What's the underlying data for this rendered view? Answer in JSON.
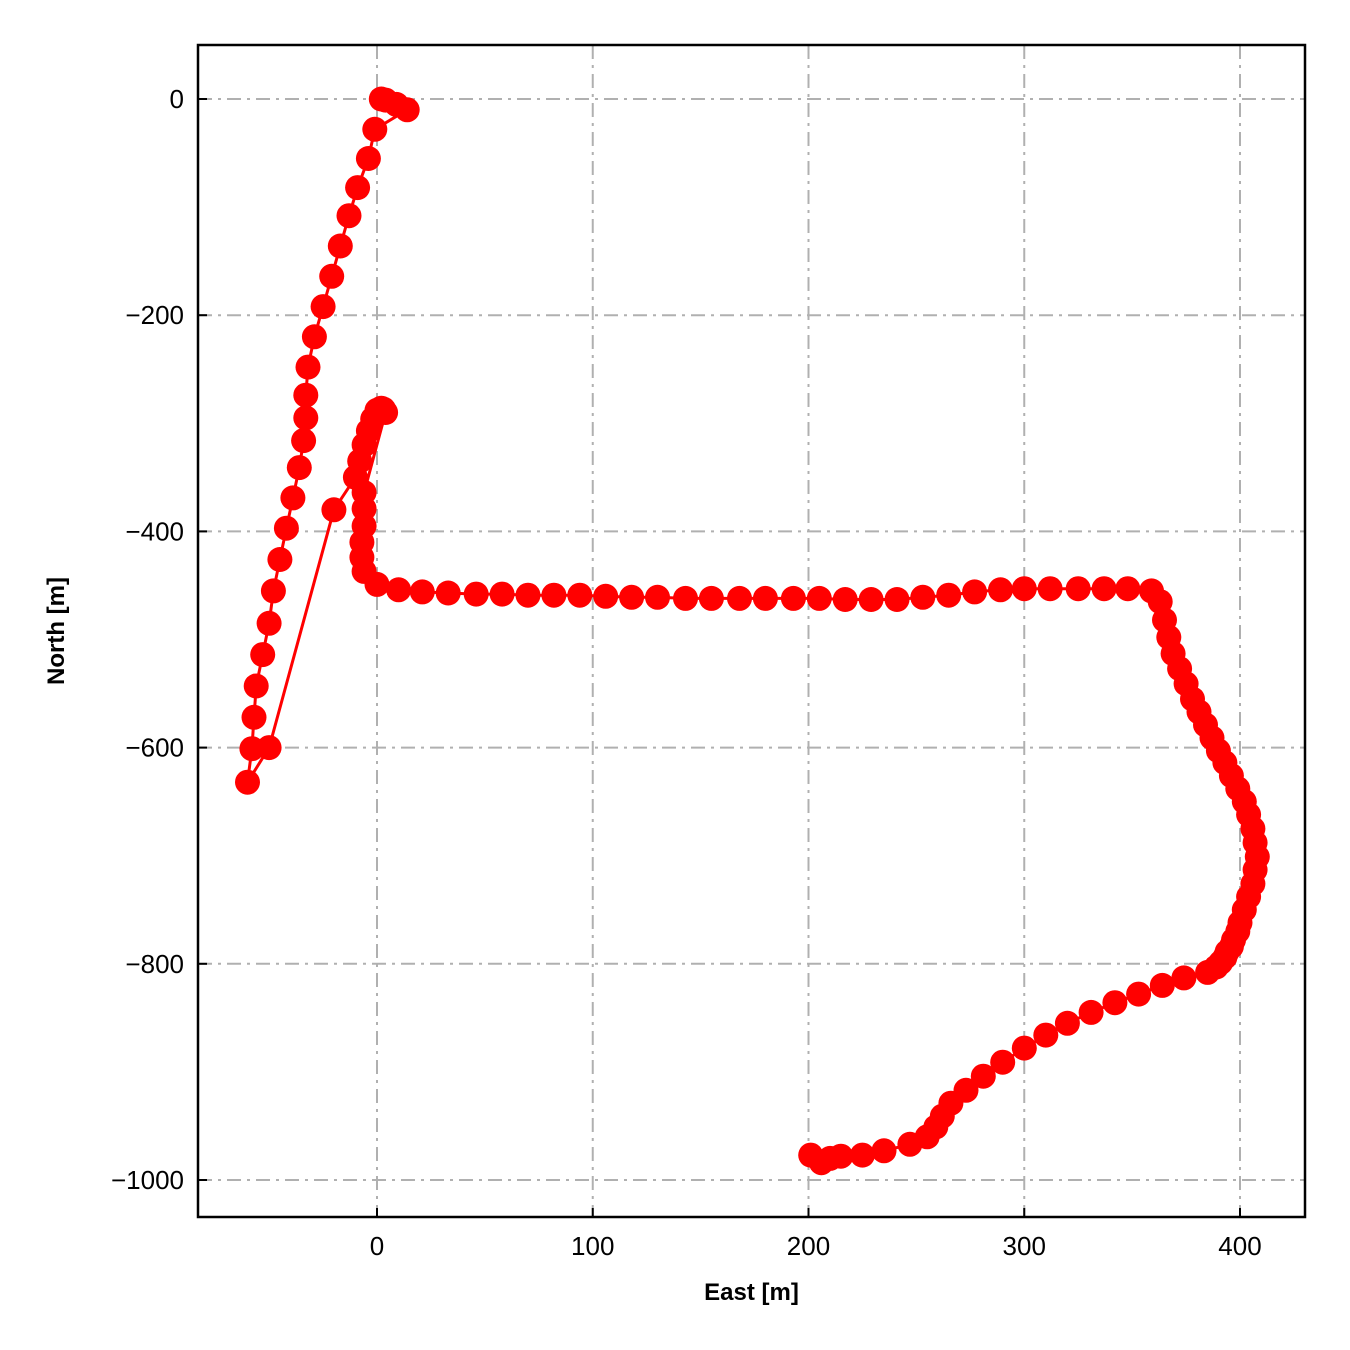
{
  "chart_data": {
    "type": "line",
    "title": "",
    "xlabel": "East [m]",
    "ylabel": "North [m]",
    "xlim": [
      -83,
      430
    ],
    "ylim": [
      -1035,
      50
    ],
    "xticks": [
      0,
      100,
      200,
      300,
      400
    ],
    "yticks": [
      0,
      -200,
      -400,
      -600,
      -800,
      -1000
    ],
    "xtick_labels": [
      "0",
      "100",
      "200",
      "300",
      "400"
    ],
    "ytick_labels": [
      "0",
      "−200",
      "−400",
      "−600",
      "−800",
      "−1000"
    ],
    "grid": true,
    "grid_style": "dash-dot",
    "legend": null,
    "series": [
      {
        "color": "#ff0000",
        "marker": "circle",
        "x": [
          2,
          4,
          9,
          14,
          -1,
          -4,
          -9,
          -13,
          -17,
          -21,
          -25,
          -29,
          -32,
          -33,
          -33,
          -34,
          -36,
          -39,
          -42,
          -45,
          -48,
          -50,
          -53,
          -56,
          -57,
          -58,
          -60,
          -50,
          -20,
          -10,
          -8,
          -6,
          -4,
          -2,
          0,
          2,
          3,
          4,
          -6,
          -6,
          -6,
          -7,
          -7,
          -6,
          0,
          10,
          21,
          33,
          46,
          58,
          70,
          82,
          94,
          106,
          118,
          130,
          143,
          155,
          168,
          180,
          193,
          205,
          217,
          229,
          241,
          253,
          265,
          277,
          289,
          300,
          312,
          325,
          337,
          348,
          359,
          363,
          365,
          367,
          369,
          372,
          375,
          378,
          381,
          384,
          387,
          390,
          393,
          396,
          399,
          402,
          404,
          406,
          407,
          408,
          407,
          406,
          404,
          402,
          400,
          399,
          397,
          396,
          394,
          393,
          391,
          389,
          385,
          374,
          364,
          353,
          342,
          331,
          320,
          310,
          300,
          290,
          281,
          273,
          266,
          262,
          259,
          255,
          247,
          235,
          225,
          215,
          210,
          206,
          201
        ],
        "y": [
          0,
          -1,
          -5,
          -10,
          -28,
          -55,
          -82,
          -108,
          -136,
          -164,
          -192,
          -220,
          -248,
          -274,
          -295,
          -316,
          -341,
          -369,
          -397,
          -426,
          -455,
          -485,
          -514,
          -543,
          -572,
          -601,
          -632,
          -600,
          -380,
          -350,
          -335,
          -320,
          -307,
          -296,
          -288,
          -286,
          -287,
          -290,
          -364,
          -379,
          -395,
          -410,
          -424,
          -437,
          -449,
          -454,
          -456,
          -457,
          -458,
          -458,
          -459,
          -459,
          -459,
          -460,
          -461,
          -461,
          -462,
          -462,
          -462,
          -462,
          -462,
          -462,
          -463,
          -463,
          -463,
          -461,
          -459,
          -456,
          -454,
          -453,
          -453,
          -453,
          -453,
          -453,
          -455,
          -465,
          -482,
          -498,
          -513,
          -527,
          -541,
          -555,
          -567,
          -579,
          -591,
          -603,
          -614,
          -626,
          -638,
          -650,
          -662,
          -675,
          -688,
          -701,
          -713,
          -726,
          -738,
          -750,
          -762,
          -770,
          -778,
          -784,
          -789,
          -794,
          -799,
          -803,
          -808,
          -813,
          -820,
          -828,
          -836,
          -845,
          -855,
          -866,
          -878,
          -891,
          -904,
          -917,
          -929,
          -941,
          -951,
          -960,
          -967,
          -973,
          -977,
          -978,
          -980,
          -984,
          -977
        ]
      }
    ]
  }
}
